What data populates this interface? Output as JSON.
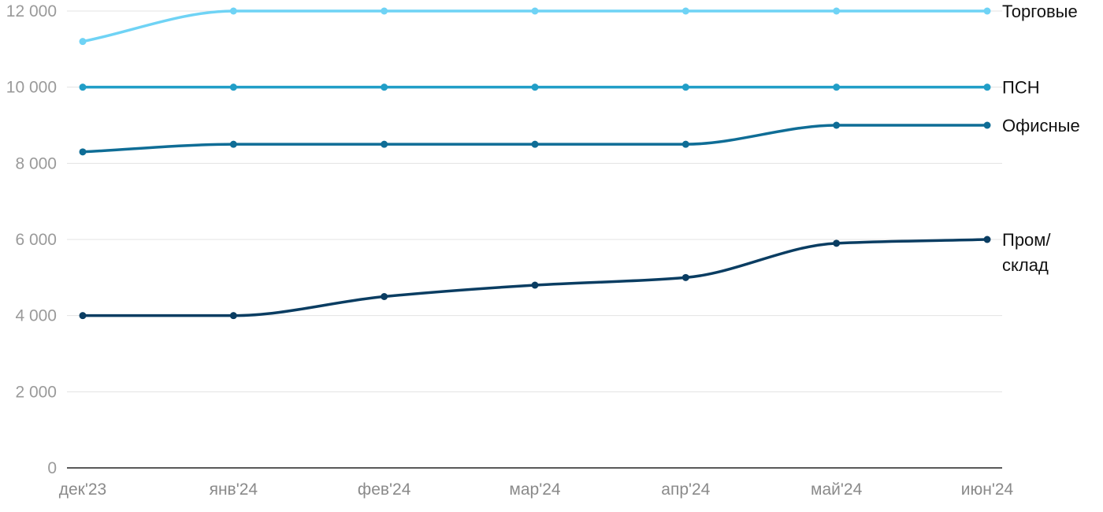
{
  "chart_data": {
    "type": "line",
    "categories": [
      "дек'23",
      "янв'24",
      "фев'24",
      "мар'24",
      "апр'24",
      "май'24",
      "июн'24"
    ],
    "ylim": [
      0,
      12000
    ],
    "yticks": [
      "0",
      "2 000",
      "4 000",
      "6 000",
      "8 000",
      "10 000",
      "12 000"
    ],
    "ytick_values": [
      0,
      2000,
      4000,
      6000,
      8000,
      10000,
      12000
    ],
    "grid": true,
    "legend": "inline-right",
    "series": [
      {
        "name": "Торговые",
        "label_lines": [
          "Торговые"
        ],
        "color": "#6fd3f5",
        "values": [
          11200,
          12000,
          12000,
          12000,
          12000,
          12000,
          12000
        ]
      },
      {
        "name": "ПСН",
        "label_lines": [
          "ПСН"
        ],
        "color": "#219ec7",
        "values": [
          10000,
          10000,
          10000,
          10000,
          10000,
          10000,
          10000
        ]
      },
      {
        "name": "Офисные",
        "label_lines": [
          "Офисные"
        ],
        "color": "#0f6d96",
        "values": [
          8300,
          8500,
          8500,
          8500,
          8500,
          9000,
          9000
        ]
      },
      {
        "name": "Пром/склад",
        "label_lines": [
          "Пром/",
          "склад"
        ],
        "color": "#0a3d62",
        "values": [
          4000,
          4000,
          4500,
          4800,
          5000,
          5900,
          6000
        ]
      }
    ]
  }
}
